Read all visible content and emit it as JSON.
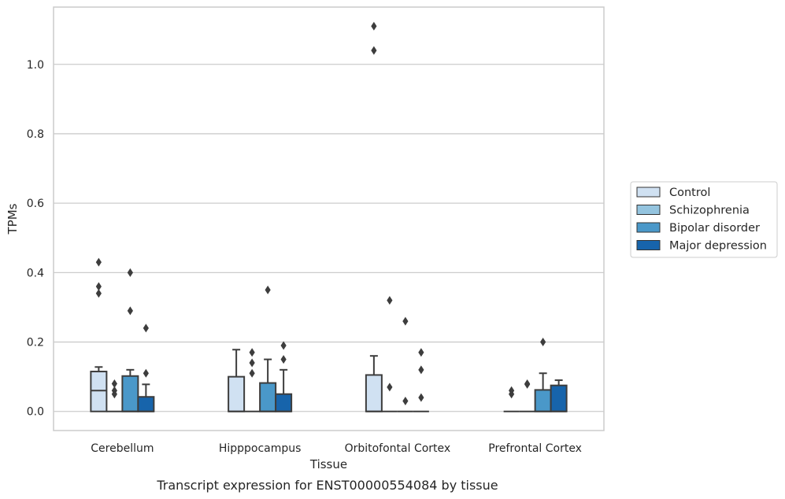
{
  "caption": "Transcript expression for ENST00000554084 by tissue",
  "chart_data": {
    "type": "box",
    "title": "",
    "xlabel": "Tissue",
    "ylabel": "TPMs",
    "ylim": [
      -0.055,
      1.165
    ],
    "yticks": [
      0.0,
      0.2,
      0.4,
      0.6,
      0.8,
      1.0
    ],
    "ytick_labels": [
      "0.0",
      "0.2",
      "0.4",
      "0.6",
      "0.8",
      "1.0"
    ],
    "grid": true,
    "legend_position": "right",
    "categories": [
      "Cerebellum",
      "Hipppocampus",
      "Orbitofontal Cortex",
      "Prefrontal Cortex"
    ],
    "series": [
      {
        "name": "Control",
        "color": "#d0e1f2",
        "boxes": [
          {
            "q1": 0.0,
            "median": 0.06,
            "q3": 0.115,
            "whisker_low": 0.0,
            "whisker_high": 0.128,
            "outliers": [
              0.43,
              0.36,
              0.34
            ]
          },
          {
            "q1": 0.0,
            "median": 0.0,
            "q3": 0.1,
            "whisker_low": 0.0,
            "whisker_high": 0.178,
            "outliers": []
          },
          {
            "q1": 0.0,
            "median": 0.0,
            "q3": 0.105,
            "whisker_low": 0.0,
            "whisker_high": 0.16,
            "outliers": [
              1.11,
              1.04
            ]
          },
          {
            "q1": 0.0,
            "median": 0.0,
            "q3": 0.0,
            "whisker_low": 0.0,
            "whisker_high": 0.0,
            "outliers": [
              0.06,
              0.05
            ]
          }
        ]
      },
      {
        "name": "Schizophrenia",
        "color": "#94c4df",
        "boxes": [
          {
            "q1": 0.0,
            "median": 0.0,
            "q3": 0.0,
            "whisker_low": 0.0,
            "whisker_high": 0.0,
            "outliers": [
              0.08,
              0.06,
              0.05
            ]
          },
          {
            "q1": 0.0,
            "median": 0.0,
            "q3": 0.0,
            "whisker_low": 0.0,
            "whisker_high": 0.0,
            "outliers": [
              0.17,
              0.14,
              0.11
            ]
          },
          {
            "q1": 0.0,
            "median": 0.0,
            "q3": 0.0,
            "whisker_low": 0.0,
            "whisker_high": 0.0,
            "outliers": [
              0.32,
              0.07
            ]
          },
          {
            "q1": 0.0,
            "median": 0.0,
            "q3": 0.0,
            "whisker_low": 0.0,
            "whisker_high": 0.0,
            "outliers": [
              0.08,
              0.078
            ]
          }
        ]
      },
      {
        "name": "Bipolar disorder",
        "color": "#4a98c9",
        "boxes": [
          {
            "q1": 0.0,
            "median": 0.0,
            "q3": 0.102,
            "whisker_low": 0.0,
            "whisker_high": 0.12,
            "outliers": [
              0.4,
              0.29
            ]
          },
          {
            "q1": 0.0,
            "median": 0.0,
            "q3": 0.082,
            "whisker_low": 0.0,
            "whisker_high": 0.15,
            "outliers": [
              0.35
            ]
          },
          {
            "q1": 0.0,
            "median": 0.0,
            "q3": 0.0,
            "whisker_low": 0.0,
            "whisker_high": 0.0,
            "outliers": [
              0.26,
              0.03
            ]
          },
          {
            "q1": 0.0,
            "median": 0.0,
            "q3": 0.062,
            "whisker_low": 0.0,
            "whisker_high": 0.11,
            "outliers": [
              0.2
            ]
          }
        ]
      },
      {
        "name": "Major depression",
        "color": "#1764ab",
        "boxes": [
          {
            "q1": 0.0,
            "median": 0.0,
            "q3": 0.042,
            "whisker_low": 0.0,
            "whisker_high": 0.078,
            "outliers": [
              0.24,
              0.11
            ]
          },
          {
            "q1": 0.0,
            "median": 0.0,
            "q3": 0.05,
            "whisker_low": 0.0,
            "whisker_high": 0.12,
            "outliers": [
              0.19,
              0.15
            ]
          },
          {
            "q1": 0.0,
            "median": 0.0,
            "q3": 0.0,
            "whisker_low": 0.0,
            "whisker_high": 0.0,
            "outliers": [
              0.17,
              0.12,
              0.04
            ]
          },
          {
            "q1": 0.0,
            "median": 0.0,
            "q3": 0.075,
            "whisker_low": 0.0,
            "whisker_high": 0.09,
            "outliers": []
          }
        ]
      }
    ]
  }
}
